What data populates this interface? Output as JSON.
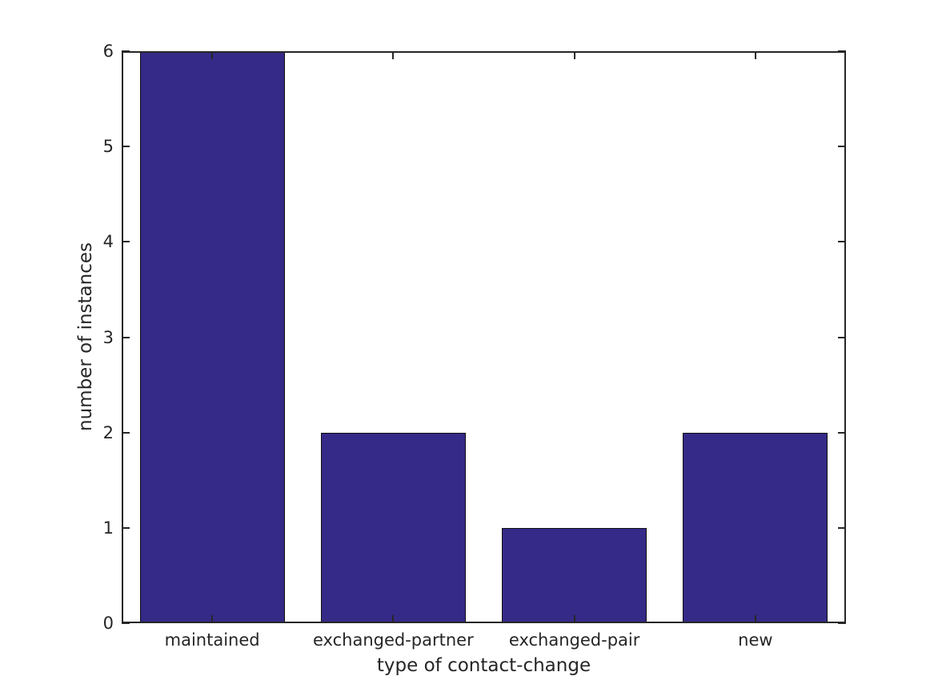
{
  "chart_data": {
    "type": "bar",
    "title": "",
    "categories": [
      "maintained",
      "exchanged-partner",
      "exchanged-pair",
      "new"
    ],
    "values": [
      6,
      2,
      1,
      2
    ],
    "xlabel": "type of contact-change",
    "ylabel": "number of instances",
    "ylim": [
      0,
      6
    ],
    "yticks": [
      0,
      1,
      2,
      3,
      4,
      5,
      6
    ],
    "bar_width_fraction": 0.8,
    "grid": false,
    "legend": "none",
    "box": true,
    "tick_direction": "in"
  },
  "colors": {
    "bar_fill": "#352a87",
    "bar_edge": "#101010",
    "axis": "#262626",
    "text": "#262626",
    "background": "#ffffff"
  }
}
